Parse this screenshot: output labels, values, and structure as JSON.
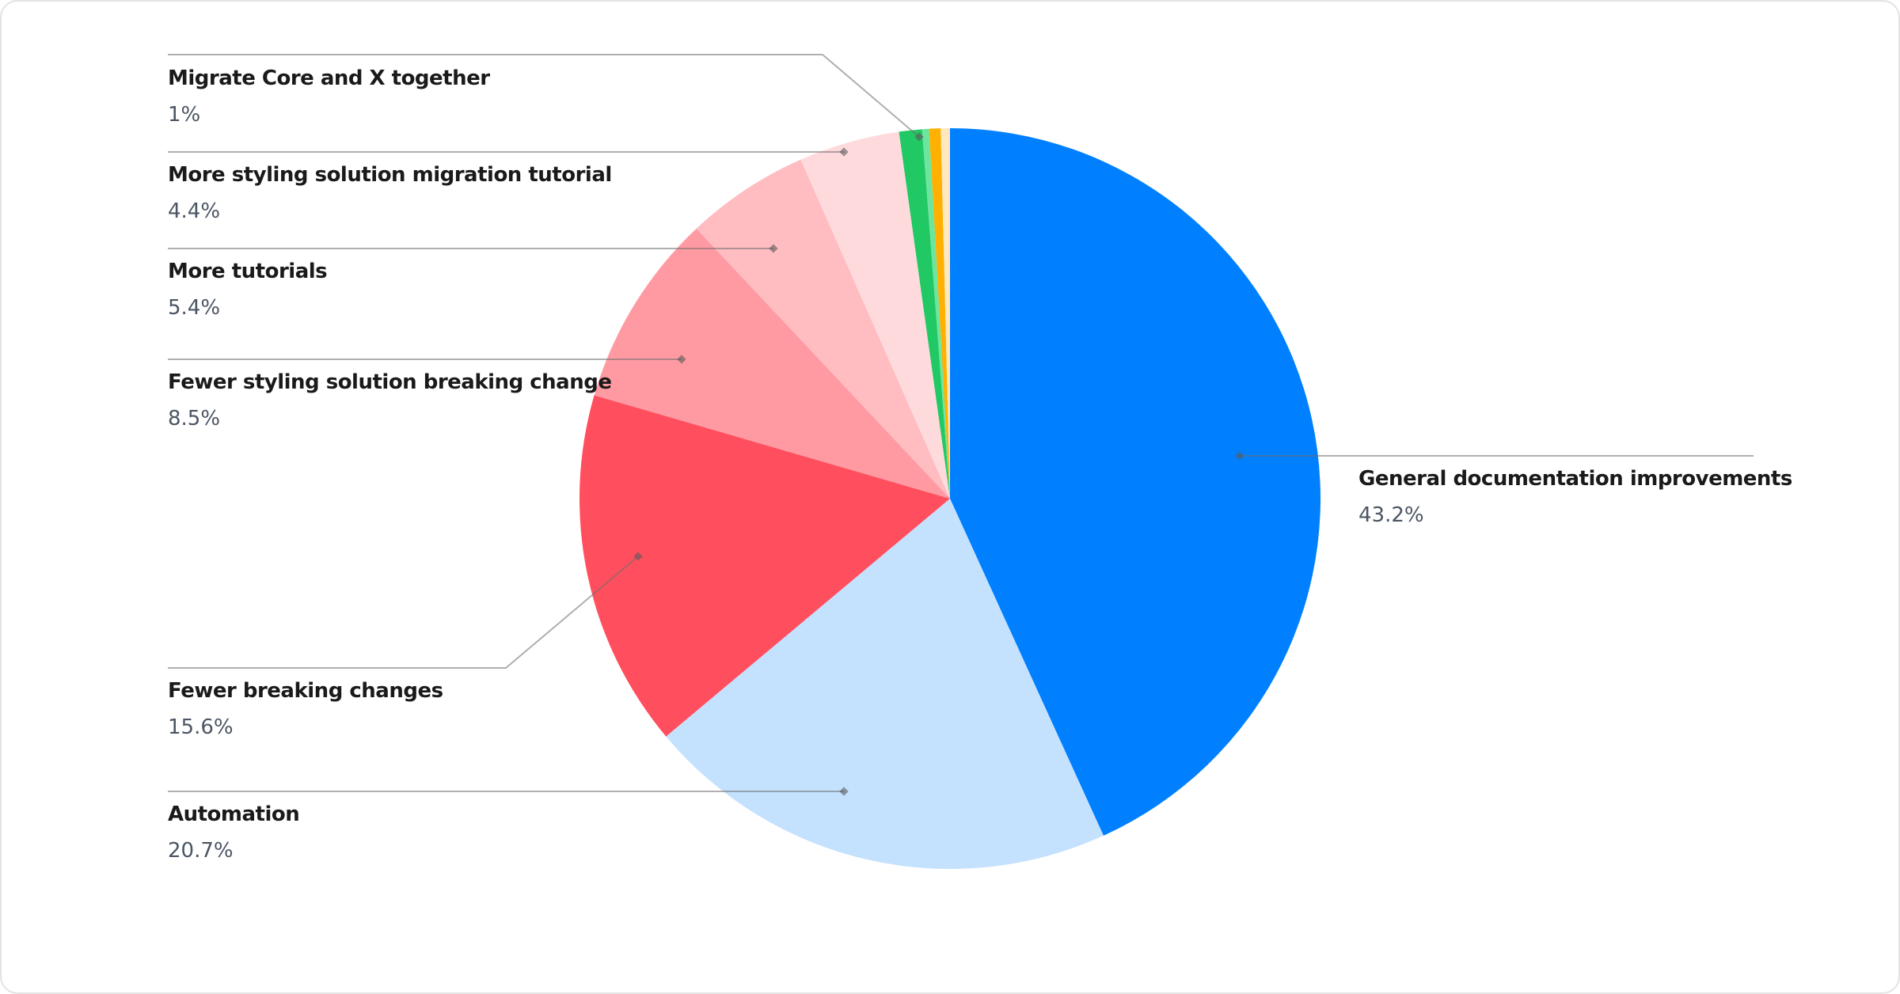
{
  "chart_data": {
    "type": "pie",
    "start": "top, clockwise",
    "slices": [
      {
        "label": "General documentation improvements",
        "value": 43.2,
        "value_label": "43.2%",
        "color": "#0080ff"
      },
      {
        "label": "Automation",
        "value": 20.7,
        "value_label": "20.7%",
        "color": "#c4e1fe"
      },
      {
        "label": "Fewer breaking changes",
        "value": 15.6,
        "value_label": "15.6%",
        "color": "#ff4f5e"
      },
      {
        "label": "Fewer styling solution breaking change",
        "value": 8.5,
        "value_label": "8.5%",
        "color": "#ff9aa2"
      },
      {
        "label": "More tutorials",
        "value": 5.4,
        "value_label": "5.4%",
        "color": "#ffbcc1"
      },
      {
        "label": "More styling solution migration tutorial",
        "value": 4.4,
        "value_label": "4.4%",
        "color": "#ffdadd"
      },
      {
        "label": "Migrate Core and X together",
        "value": 1,
        "value_label": "1%",
        "color": "#21c964"
      },
      {
        "label": "",
        "value": 0.3,
        "value_label": "",
        "color": "#6ee59e"
      },
      {
        "label": "",
        "value": 0.5,
        "value_label": "",
        "color": "#ffb000"
      },
      {
        "label": "",
        "value": 0.4,
        "value_label": "",
        "color": "#ffe8bf"
      }
    ],
    "legend": "callout labels with leader lines"
  }
}
